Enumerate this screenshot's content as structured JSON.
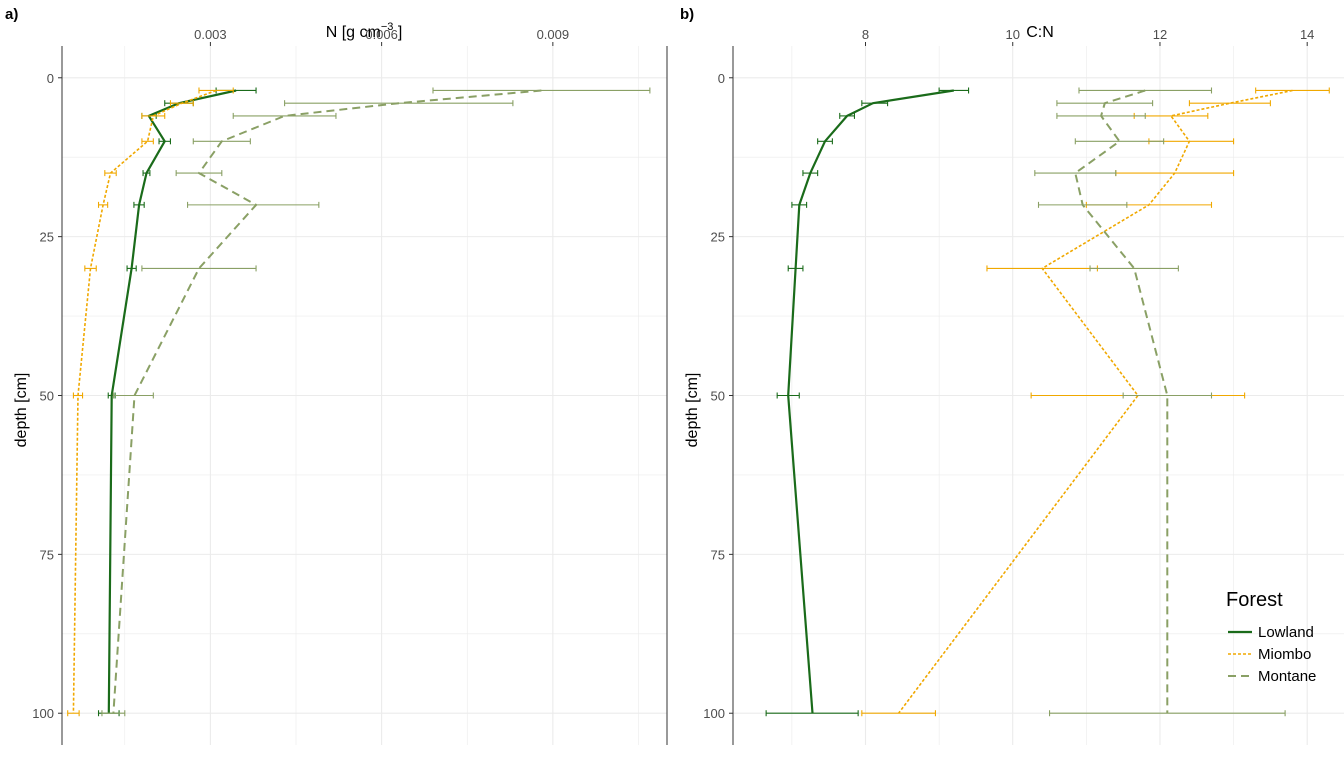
{
  "colors": {
    "lowland": "#1a6b1a",
    "miombo": "#f0a800",
    "montane": "#8aa065",
    "grid": "#ebebeb",
    "axis_text": "#4d4d4d",
    "title_text": "#000000"
  },
  "chart_data": [
    {
      "type": "line",
      "panel_label": "a)",
      "xlabel_base": "N [g cm",
      "xlabel_sup": "−3",
      "xlabel_tail": " ]",
      "ylabel": "depth [cm]",
      "xlim": [
        0.0004,
        0.011
      ],
      "ylim": [
        105,
        -5
      ],
      "x_ticks": [
        0.003,
        0.006,
        0.009
      ],
      "x_tick_labels": [
        "0.003",
        "0.006",
        "0.009"
      ],
      "x_minor": [
        0.0015,
        0.0045,
        0.0075,
        0.0105
      ],
      "y_ticks": [
        0,
        25,
        50,
        75,
        100
      ],
      "y_tick_labels": [
        "0",
        "25",
        "50",
        "75",
        "100"
      ],
      "y_minor": [
        12.5,
        37.5,
        62.5,
        87.5
      ],
      "series": [
        {
          "key": "lowland",
          "dash": "",
          "width": 2.2,
          "points": [
            {
              "depth": 2,
              "x": 0.00345,
              "lo": 0.0031,
              "hi": 0.0038
            },
            {
              "depth": 4,
              "x": 0.00245,
              "lo": 0.0022,
              "hi": 0.0027
            },
            {
              "depth": 6,
              "x": 0.00192,
              "lo": 0.0018,
              "hi": 0.00205
            },
            {
              "depth": 10,
              "x": 0.0022,
              "lo": 0.0021,
              "hi": 0.0023
            },
            {
              "depth": 15,
              "x": 0.00188,
              "lo": 0.00182,
              "hi": 0.00194
            },
            {
              "depth": 20,
              "x": 0.00175,
              "lo": 0.00166,
              "hi": 0.00184
            },
            {
              "depth": 30,
              "x": 0.00162,
              "lo": 0.00154,
              "hi": 0.0017
            },
            {
              "depth": 50,
              "x": 0.00127,
              "lo": 0.00121,
              "hi": 0.00133
            },
            {
              "depth": 100,
              "x": 0.00122,
              "lo": 0.00104,
              "hi": 0.0014
            }
          ]
        },
        {
          "key": "miombo",
          "dash": "3,2",
          "width": 1.6,
          "points": [
            {
              "depth": 2,
              "x": 0.0031,
              "lo": 0.0028,
              "hi": 0.0034
            },
            {
              "depth": 4,
              "x": 0.0025,
              "lo": 0.0023,
              "hi": 0.0027
            },
            {
              "depth": 6,
              "x": 0.002,
              "lo": 0.0018,
              "hi": 0.0022
            },
            {
              "depth": 10,
              "x": 0.0019,
              "lo": 0.0018,
              "hi": 0.002
            },
            {
              "depth": 15,
              "x": 0.00125,
              "lo": 0.00115,
              "hi": 0.00135
            },
            {
              "depth": 20,
              "x": 0.00112,
              "lo": 0.00104,
              "hi": 0.0012
            },
            {
              "depth": 30,
              "x": 0.0009,
              "lo": 0.0008,
              "hi": 0.001
            },
            {
              "depth": 50,
              "x": 0.00068,
              "lo": 0.0006,
              "hi": 0.00076
            },
            {
              "depth": 100,
              "x": 0.0006,
              "lo": 0.0005,
              "hi": 0.0007
            }
          ]
        },
        {
          "key": "montane",
          "dash": "8,5",
          "width": 2.0,
          "points": [
            {
              "depth": 2,
              "x": 0.0088,
              "lo": 0.0069,
              "hi": 0.0107
            },
            {
              "depth": 4,
              "x": 0.0063,
              "lo": 0.0043,
              "hi": 0.0083
            },
            {
              "depth": 6,
              "x": 0.0043,
              "lo": 0.0034,
              "hi": 0.0052
            },
            {
              "depth": 10,
              "x": 0.0032,
              "lo": 0.0027,
              "hi": 0.0037
            },
            {
              "depth": 15,
              "x": 0.0028,
              "lo": 0.0024,
              "hi": 0.0032
            },
            {
              "depth": 20,
              "x": 0.0038,
              "lo": 0.0026,
              "hi": 0.0049
            },
            {
              "depth": 30,
              "x": 0.0028,
              "lo": 0.0018,
              "hi": 0.0038
            },
            {
              "depth": 50,
              "x": 0.00167,
              "lo": 0.0013,
              "hi": 0.002
            },
            {
              "depth": 100,
              "x": 0.0013,
              "lo": 0.0011,
              "hi": 0.0015
            }
          ]
        }
      ]
    },
    {
      "type": "line",
      "panel_label": "b)",
      "xlabel_base": "C:N",
      "xlabel_sup": "",
      "xlabel_tail": "",
      "ylabel": "depth [cm]",
      "xlim": [
        6.2,
        14.5
      ],
      "ylim": [
        105,
        -5
      ],
      "x_ticks": [
        8,
        10,
        12,
        14
      ],
      "x_tick_labels": [
        "8",
        "10",
        "12",
        "14"
      ],
      "x_minor": [
        7,
        9,
        11,
        13
      ],
      "y_ticks": [
        0,
        25,
        50,
        75,
        100
      ],
      "y_tick_labels": [
        "0",
        "25",
        "50",
        "75",
        "100"
      ],
      "y_minor": [
        12.5,
        37.5,
        62.5,
        87.5
      ],
      "series": [
        {
          "key": "lowland",
          "dash": "",
          "width": 2.2,
          "points": [
            {
              "depth": 2,
              "x": 9.2,
              "lo": 9.0,
              "hi": 9.4
            },
            {
              "depth": 4,
              "x": 8.1,
              "lo": 7.95,
              "hi": 8.3
            },
            {
              "depth": 6,
              "x": 7.75,
              "lo": 7.65,
              "hi": 7.85
            },
            {
              "depth": 10,
              "x": 7.45,
              "lo": 7.35,
              "hi": 7.55
            },
            {
              "depth": 15,
              "x": 7.25,
              "lo": 7.15,
              "hi": 7.35
            },
            {
              "depth": 20,
              "x": 7.1,
              "lo": 7.0,
              "hi": 7.2
            },
            {
              "depth": 30,
              "x": 7.05,
              "lo": 6.95,
              "hi": 7.15
            },
            {
              "depth": 50,
              "x": 6.95,
              "lo": 6.8,
              "hi": 7.1
            },
            {
              "depth": 100,
              "x": 7.28,
              "lo": 6.65,
              "hi": 7.9
            }
          ]
        },
        {
          "key": "miombo",
          "dash": "3,2",
          "width": 1.6,
          "points": [
            {
              "depth": 2,
              "x": 13.8,
              "lo": 13.3,
              "hi": 14.3
            },
            {
              "depth": 4,
              "x": 12.95,
              "lo": 12.4,
              "hi": 13.5
            },
            {
              "depth": 6,
              "x": 12.15,
              "lo": 11.65,
              "hi": 12.65
            },
            {
              "depth": 10,
              "x": 12.4,
              "lo": 11.85,
              "hi": 13.0
            },
            {
              "depth": 15,
              "x": 12.2,
              "lo": 11.4,
              "hi": 13.0
            },
            {
              "depth": 20,
              "x": 11.85,
              "lo": 11.0,
              "hi": 12.7
            },
            {
              "depth": 30,
              "x": 10.4,
              "lo": 9.65,
              "hi": 11.15
            },
            {
              "depth": 50,
              "x": 11.7,
              "lo": 10.25,
              "hi": 13.15
            },
            {
              "depth": 100,
              "x": 8.45,
              "lo": 7.95,
              "hi": 8.95
            }
          ]
        },
        {
          "key": "montane",
          "dash": "8,5",
          "width": 2.0,
          "points": [
            {
              "depth": 2,
              "x": 11.8,
              "lo": 10.9,
              "hi": 12.7
            },
            {
              "depth": 4,
              "x": 11.25,
              "lo": 10.6,
              "hi": 11.9
            },
            {
              "depth": 6,
              "x": 11.2,
              "lo": 10.6,
              "hi": 11.8
            },
            {
              "depth": 10,
              "x": 11.45,
              "lo": 10.85,
              "hi": 12.05
            },
            {
              "depth": 15,
              "x": 10.85,
              "lo": 10.3,
              "hi": 11.4
            },
            {
              "depth": 20,
              "x": 10.95,
              "lo": 10.35,
              "hi": 11.55
            },
            {
              "depth": 30,
              "x": 11.65,
              "lo": 11.05,
              "hi": 12.25
            },
            {
              "depth": 50,
              "x": 12.1,
              "lo": 11.5,
              "hi": 12.7
            },
            {
              "depth": 100,
              "x": 12.1,
              "lo": 10.5,
              "hi": 13.7
            }
          ]
        }
      ]
    }
  ],
  "legend": {
    "title": "Forest",
    "position": "bottom-right of panel b",
    "items": [
      {
        "key": "lowland",
        "label": "Lowland"
      },
      {
        "key": "miombo",
        "label": "Miombo"
      },
      {
        "key": "montane",
        "label": "Montane"
      }
    ]
  }
}
